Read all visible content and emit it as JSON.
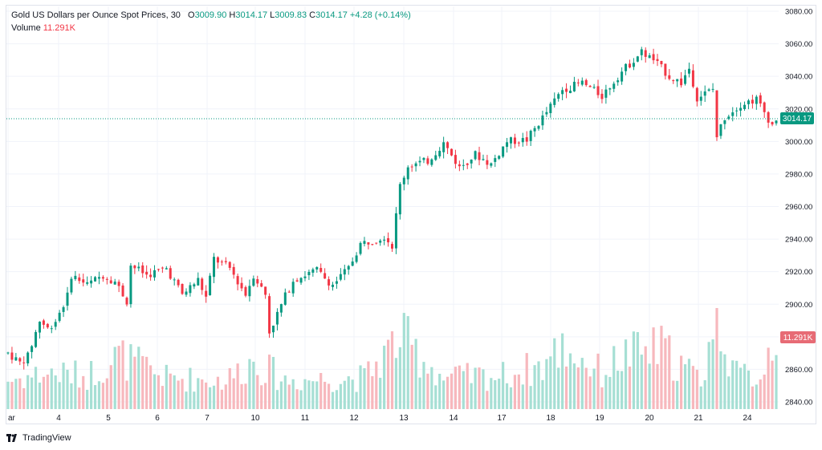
{
  "legend": {
    "symbol": "Gold US Dollars per Ounce Spot Prices, 30",
    "o_label": "O",
    "o": "3009.90",
    "h_label": "H",
    "h": "3014.17",
    "l_label": "L",
    "l": "3009.83",
    "c_label": "C",
    "c": "3014.17",
    "change": "+4.28 (+0.14%)",
    "volume_label": "Volume",
    "volume_value": "11.291K"
  },
  "footer": {
    "brand": "TradingView"
  },
  "colors": {
    "up": "#089981",
    "down": "#f23645",
    "up_vol": "#a6dfd4",
    "down_vol": "#f7b8bd",
    "grid": "#f0f3fa"
  },
  "chart_data": {
    "type": "candlestick",
    "title": "Gold US Dollars per Ounce Spot Prices, 30",
    "y_axis": {
      "ticks": [
        3080,
        3060,
        3040,
        3020,
        3000,
        2980,
        2960,
        2940,
        2920,
        2900,
        2880,
        2860,
        2840
      ],
      "ylim": [
        2837,
        3082
      ]
    },
    "x_axis": {
      "ticks": [
        "ar",
        "4",
        "5",
        "6",
        "7",
        "10",
        "11",
        "12",
        "13",
        "14",
        "17",
        "18",
        "19",
        "20",
        "21",
        "24"
      ]
    },
    "last_price": "3014.17",
    "last_volume": "11.291K",
    "grid": true,
    "price_path": [
      [
        0,
        2870
      ],
      [
        3,
        2864
      ],
      [
        5,
        2868
      ],
      [
        8,
        2890
      ],
      [
        10,
        2885
      ],
      [
        12,
        2890
      ],
      [
        15,
        2905
      ],
      [
        16,
        2918
      ],
      [
        20,
        2912
      ],
      [
        24,
        2918
      ],
      [
        27,
        2914
      ],
      [
        30,
        2902
      ],
      [
        31,
        2924
      ],
      [
        35,
        2918
      ],
      [
        40,
        2922
      ],
      [
        44,
        2906
      ],
      [
        48,
        2915
      ],
      [
        50,
        2904
      ],
      [
        52,
        2928
      ],
      [
        56,
        2922
      ],
      [
        60,
        2906
      ],
      [
        62,
        2918
      ],
      [
        65,
        2906
      ],
      [
        66,
        2883
      ],
      [
        70,
        2905
      ],
      [
        72,
        2915
      ],
      [
        78,
        2921
      ],
      [
        80,
        2916
      ],
      [
        82,
        2912
      ],
      [
        86,
        2922
      ],
      [
        89,
        2937
      ],
      [
        93,
        2940
      ],
      [
        95,
        2942
      ],
      [
        97,
        2936
      ],
      [
        99,
        2973
      ],
      [
        101,
        2985
      ],
      [
        106,
        2988
      ],
      [
        110,
        2999
      ],
      [
        114,
        2984
      ],
      [
        118,
        2992
      ],
      [
        122,
        2986
      ],
      [
        126,
        3000
      ],
      [
        131,
        3001
      ],
      [
        136,
        3018
      ],
      [
        140,
        3032
      ],
      [
        145,
        3036
      ],
      [
        150,
        3028
      ],
      [
        155,
        3043
      ],
      [
        160,
        3055
      ],
      [
        163,
        3050
      ],
      [
        167,
        3040
      ],
      [
        170,
        3036
      ],
      [
        172,
        3045
      ],
      [
        174,
        3027
      ],
      [
        178,
        3032
      ],
      [
        179,
        3003
      ],
      [
        181,
        3015
      ],
      [
        185,
        3023
      ],
      [
        189,
        3026
      ],
      [
        193,
        3010
      ],
      [
        194,
        3014
      ]
    ],
    "volume_path": [
      [
        0,
        0.12
      ],
      [
        10,
        0.15
      ],
      [
        20,
        0.14
      ],
      [
        28,
        0.22
      ],
      [
        40,
        0.13
      ],
      [
        55,
        0.12
      ],
      [
        62,
        0.2
      ],
      [
        70,
        0.12
      ],
      [
        90,
        0.13
      ],
      [
        99,
        0.3
      ],
      [
        110,
        0.13
      ],
      [
        125,
        0.14
      ],
      [
        135,
        0.18
      ],
      [
        140,
        0.26
      ],
      [
        150,
        0.15
      ],
      [
        155,
        0.22
      ],
      [
        165,
        0.25
      ],
      [
        175,
        0.12
      ],
      [
        179,
        0.4
      ],
      [
        184,
        0.14
      ],
      [
        190,
        0.14
      ],
      [
        194,
        0.33
      ]
    ],
    "candle_count": 195,
    "seed": 7
  }
}
